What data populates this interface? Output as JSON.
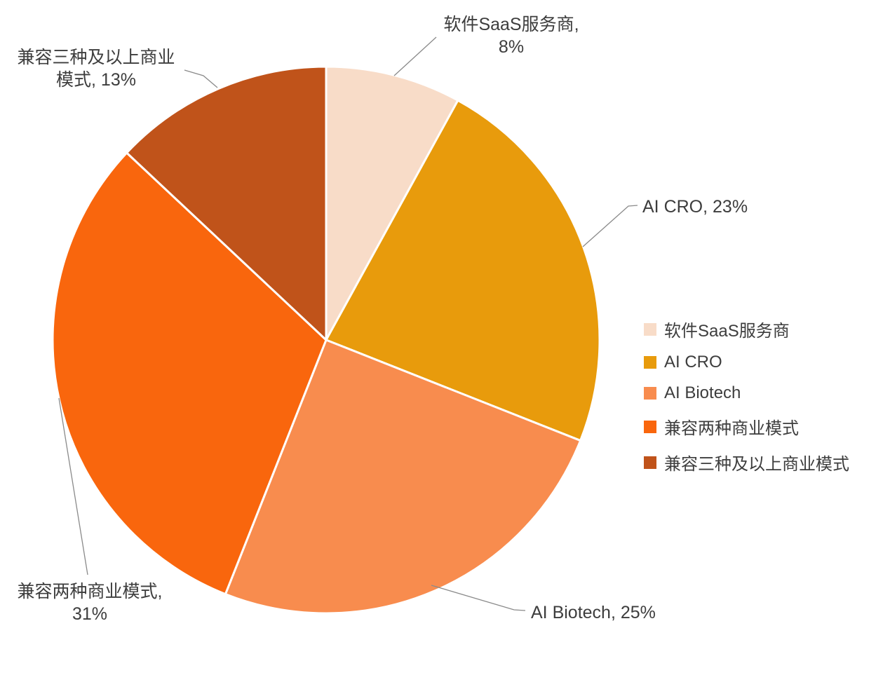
{
  "chart_data": {
    "type": "pie",
    "title": "",
    "categories": [
      "软件SaaS服务商",
      "AI CRO",
      "AI Biotech",
      "兼容两种商业模式",
      "兼容三种及以上商业模式"
    ],
    "values": [
      8,
      23,
      25,
      31,
      13
    ],
    "unit": "%",
    "colors": [
      "#F8DCC8",
      "#E89B0C",
      "#F88C4E",
      "#F9660D",
      "#C0531A"
    ],
    "start_angle": "top (12 o'clock)",
    "direction": "clockwise",
    "slice_border_color": "#FFFFFF",
    "legend_position": "right",
    "data_labels": [
      "软件SaaS服务商, 8%",
      "AI CRO, 23%",
      "AI Biotech, 25%",
      "兼容两种商业模式, 31%",
      "兼容三种及以上商业模式, 13%"
    ]
  },
  "callouts": {
    "saas": {
      "line1": "软件SaaS服务商,",
      "line2": "8%"
    },
    "ai_cro": {
      "text": "AI CRO, 23%"
    },
    "ai_biotech": {
      "text": "AI Biotech, 25%"
    },
    "two_models": {
      "line1": "兼容两种商业模式,",
      "line2": "31%"
    },
    "three_plus_models": {
      "line1": "兼容三种及以上商业",
      "line2": "模式, 13%"
    }
  },
  "legend": {
    "items": [
      {
        "label": "软件SaaS服务商",
        "color": "#F8DCC8"
      },
      {
        "label": "AI CRO",
        "color": "#E89B0C"
      },
      {
        "label": "AI Biotech",
        "color": "#F88C4E"
      },
      {
        "label": "兼容两种商业模式",
        "color": "#F9660D"
      },
      {
        "label": "兼容三种及以上商业模式",
        "color": "#C0531A"
      }
    ]
  },
  "styles": {
    "text_color": "#3D3D3D",
    "leader_line_color": "#8A8A8A",
    "background": "#FFFFFF"
  }
}
